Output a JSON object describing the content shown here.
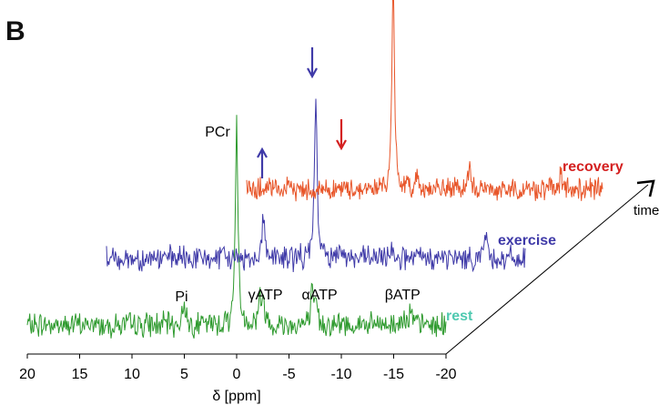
{
  "panel_label": "B",
  "chart_data": {
    "type": "line",
    "title": "",
    "xlabel": "δ [ppm]",
    "ylabel": "",
    "xlim": [
      20,
      -20
    ],
    "xticks": [
      20,
      15,
      10,
      5,
      0,
      -5,
      -10,
      -15,
      -20
    ],
    "time_axis_label": "time",
    "grid": false,
    "series": [
      {
        "name": "rest",
        "color": "#2e9a2e",
        "label_color": "#4fc9b0",
        "x_range": [
          20,
          -20
        ],
        "peaks": [
          {
            "x": 5.0,
            "height": 0.3
          },
          {
            "x": 0.0,
            "height": 2.4
          },
          {
            "x": -2.2,
            "height": 0.35
          },
          {
            "x": -2.6,
            "height": 0.25
          },
          {
            "x": -7.2,
            "height": 0.35
          },
          {
            "x": -7.6,
            "height": 0.25
          },
          {
            "x": -16.0,
            "height": 0.18
          },
          {
            "x": -16.6,
            "height": 0.15
          }
        ]
      },
      {
        "name": "exercise",
        "color": "#3f3aa8",
        "label_color": "#3f3aa8",
        "x_range": [
          20,
          -20
        ],
        "peaks": [
          {
            "x": 5.0,
            "height": 0.55
          },
          {
            "x": 0.0,
            "height": 1.9
          },
          {
            "x": -2.3,
            "height": 0.25
          },
          {
            "x": -7.3,
            "height": 0.18
          },
          {
            "x": -16.2,
            "height": 0.35
          }
        ]
      },
      {
        "name": "recovery",
        "color": "#e8562a",
        "label_color": "#d42020",
        "x_range": [
          14,
          -20
        ],
        "peaks": [
          {
            "x": 0.0,
            "height": 2.7
          },
          {
            "x": -2.3,
            "height": 0.22
          },
          {
            "x": -7.3,
            "height": 0.25
          },
          {
            "x": -16.0,
            "height": 0.18
          }
        ]
      }
    ],
    "peak_labels": [
      {
        "text": "Pi",
        "series": "rest"
      },
      {
        "text": "PCr",
        "series": "rest"
      },
      {
        "text": "γATP",
        "series": "rest"
      },
      {
        "text": "αATP",
        "series": "rest"
      },
      {
        "text": "βATP",
        "series": "rest"
      }
    ],
    "arrows": [
      {
        "direction": "up",
        "color": "#3f3aa8",
        "near": "exercise γATP"
      },
      {
        "direction": "down",
        "color": "#3f3aa8",
        "near": "exercise Pi"
      },
      {
        "direction": "down",
        "color": "#d42020",
        "near": "recovery Pi"
      }
    ]
  }
}
